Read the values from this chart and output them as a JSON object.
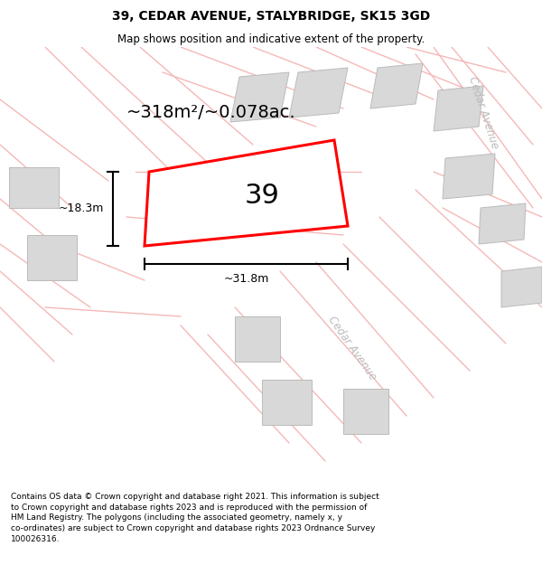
{
  "title": "39, CEDAR AVENUE, STALYBRIDGE, SK15 3GD",
  "subtitle": "Map shows position and indicative extent of the property.",
  "area_label": "~318m²/~0.078ac.",
  "number_label": "39",
  "dim_width": "~31.8m",
  "dim_height": "~18.3m",
  "street_label_1": "Cedar Avenue",
  "street_label_2": "Cedar Avenue",
  "footer": "Contains OS data © Crown copyright and database right 2021. This information is subject\nto Crown copyright and database rights 2023 and is reproduced with the permission of\nHM Land Registry. The polygons (including the associated geometry, namely x, y\nco-ordinates) are subject to Crown copyright and database rights 2023 Ordnance Survey\n100026316.",
  "bg_color": "#ffffff",
  "plot_color": "#ff0000",
  "road_color": "#f5b8b8",
  "building_color": "#d8d8d8",
  "figsize": [
    6.0,
    6.25
  ],
  "dpi": 100,
  "title_fontsize": 10,
  "subtitle_fontsize": 8.5,
  "area_fontsize": 14,
  "number_fontsize": 22,
  "footer_fontsize": 6.5,
  "street_fontsize": 8.5
}
